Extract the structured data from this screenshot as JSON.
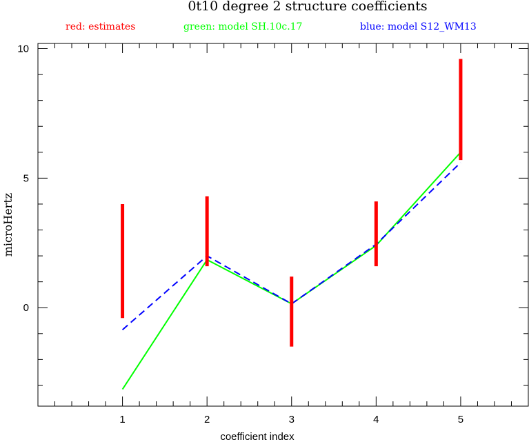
{
  "chart_data": {
    "type": "line",
    "title": "0t10 degree 2 structure coefficients",
    "legend": {
      "placement": "top",
      "items": [
        {
          "label": "red: estimates",
          "color": "#ff0000"
        },
        {
          "label": "green: model SH.10c.17",
          "color": "#00ff00"
        },
        {
          "label": "blue: model S12_WM13",
          "color": "#0000ff"
        }
      ]
    },
    "xlabel": "coefficient index",
    "ylabel": "microHertz",
    "xlim": [
      0,
      5.8
    ],
    "ylim": [
      -3.8,
      10.2
    ],
    "x_ticks": [
      1,
      2,
      3,
      4,
      5
    ],
    "y_ticks": [
      0,
      5,
      10
    ],
    "x_minor_step": 0.2,
    "y_minor_step": 1,
    "grid": false,
    "x": [
      1,
      2,
      3,
      4,
      5
    ],
    "estimates": {
      "name": "estimates",
      "color": "#ff0000",
      "style": "error-bar",
      "low": [
        -0.4,
        1.6,
        -1.5,
        1.6,
        5.7
      ],
      "high": [
        4.0,
        4.3,
        1.2,
        4.1,
        9.6
      ]
    },
    "series": [
      {
        "name": "model SH.10c.17",
        "color": "#00ff00",
        "dash": "solid",
        "values": [
          -3.15,
          1.85,
          0.15,
          2.4,
          6.0
        ]
      },
      {
        "name": "model S12_WM13",
        "color": "#0000ff",
        "dash": "dashed",
        "values": [
          -0.85,
          2.0,
          0.15,
          2.45,
          5.6
        ]
      }
    ]
  }
}
